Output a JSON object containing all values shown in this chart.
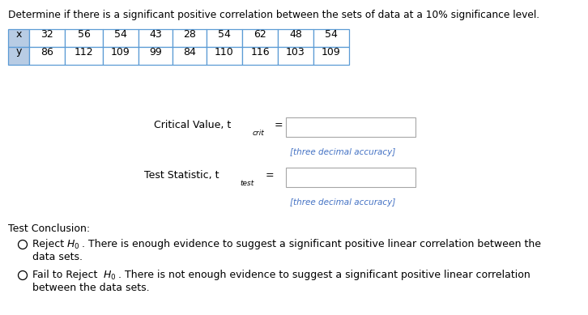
{
  "title": "Determine if there is a significant positive correlation between the sets of data at a 10% significance level.",
  "x_label": "x",
  "y_label": "y",
  "x_values": [
    32,
    56,
    54,
    43,
    28,
    54,
    62,
    48,
    54
  ],
  "y_values": [
    86,
    112,
    109,
    99,
    84,
    110,
    116,
    103,
    109
  ],
  "hint_text": "[three decimal accuracy]",
  "conclusion_header": "Test Conclusion:",
  "table_header_color": "#b8cce4",
  "table_border_color": "#5b9bd5",
  "hint_color": "#4472c4",
  "bg_color": "#ffffff",
  "text_color": "#000000",
  "box_color": "#a6a6a6",
  "fig_width": 7.26,
  "fig_height": 3.89,
  "dpi": 100
}
